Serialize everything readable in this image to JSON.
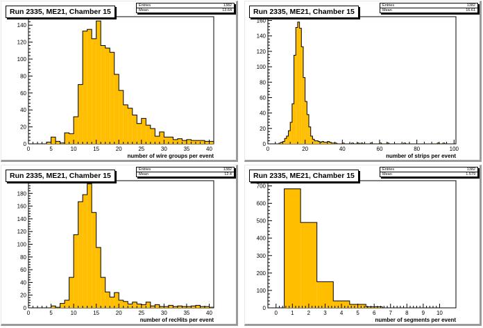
{
  "colors": {
    "fill": "#ffbe00",
    "line": "#000000",
    "shadow": "#9a9a9a"
  },
  "chart_data": [
    {
      "type": "bar",
      "title": "Run 2335, ME21, Chamber 15",
      "xlabel": "number of wire groups per event",
      "stats": {
        "entries_label": "Entries",
        "entries": "1382",
        "mean_label": "Mean",
        "mean": "13.64"
      },
      "xlim": [
        0,
        41
      ],
      "ylim": [
        0,
        150
      ],
      "xticks": [
        0,
        5,
        10,
        15,
        20,
        25,
        30,
        35,
        40
      ],
      "yticks": [
        0,
        20,
        40,
        60,
        80,
        100,
        120,
        140
      ],
      "bin_start": 0,
      "bin_width": 1,
      "values": [
        0,
        0,
        0,
        0,
        2,
        8,
        3,
        1,
        13,
        12,
        32,
        70,
        133,
        135,
        124,
        145,
        116,
        113,
        108,
        82,
        63,
        46,
        42,
        34,
        24,
        30,
        22,
        18,
        9,
        14,
        8,
        8,
        5,
        6,
        4,
        5,
        4,
        4,
        4,
        3,
        3
      ]
    },
    {
      "type": "bar",
      "title": "Run 2335, ME21, Chamber 15",
      "xlabel": "number of strips per event",
      "stats": {
        "entries_label": "Entries",
        "entries": "1382",
        "mean_label": "Mean",
        "mean": "16.61"
      },
      "xlim": [
        0,
        101
      ],
      "ylim": [
        0,
        165
      ],
      "xticks": [
        0,
        20,
        40,
        60,
        80,
        100
      ],
      "yticks": [
        0,
        20,
        40,
        60,
        80,
        100,
        120,
        140,
        160
      ],
      "bin_start": 0,
      "bin_width": 1,
      "values": [
        0,
        0,
        0,
        0,
        0,
        0,
        1,
        2,
        3,
        7,
        10,
        17,
        28,
        52,
        115,
        151,
        158,
        150,
        126,
        86,
        55,
        38,
        22,
        10,
        6,
        4,
        4,
        3,
        2,
        3,
        2,
        2,
        3,
        2,
        1,
        1,
        1,
        0,
        0,
        0,
        1,
        0,
        0,
        0,
        0,
        1,
        0,
        0,
        1,
        0,
        1,
        0,
        0,
        0,
        0,
        1,
        0,
        0,
        0,
        0,
        1,
        0,
        0,
        0,
        1,
        0,
        0,
        0,
        0,
        0,
        0,
        0,
        0,
        1,
        0,
        0,
        0,
        0,
        0,
        0,
        0,
        0,
        0,
        0,
        0,
        0,
        0,
        0,
        0,
        0,
        0,
        1,
        0,
        0,
        1,
        0,
        0,
        0,
        0,
        0,
        0
      ]
    },
    {
      "type": "bar",
      "title": "Run 2335, ME21, Chamber 15",
      "xlabel": "number of recHits per event",
      "stats": {
        "entries_label": "Entries",
        "entries": "1382",
        "mean_label": "Mean",
        "mean": "12.4"
      },
      "xlim": [
        0,
        41
      ],
      "ylim": [
        0,
        200
      ],
      "xticks": [
        0,
        5,
        10,
        15,
        20,
        25,
        30,
        35,
        40
      ],
      "yticks": [
        0,
        20,
        40,
        60,
        80,
        100,
        120,
        140,
        160,
        180,
        200
      ],
      "bin_start": 0,
      "bin_width": 1,
      "values": [
        0,
        0,
        0,
        0,
        0,
        3,
        1,
        7,
        12,
        48,
        115,
        167,
        178,
        195,
        150,
        95,
        48,
        25,
        17,
        24,
        12,
        10,
        6,
        9,
        6,
        5,
        9,
        3,
        5,
        2,
        2,
        4,
        2,
        3,
        2,
        2,
        3,
        4,
        2,
        2,
        1
      ]
    },
    {
      "type": "bar",
      "title": "Run 2335, ME21, Chamber 15",
      "xlabel": "number of segments per event",
      "stats": {
        "entries_label": "Entries",
        "entries": "1382",
        "mean_label": "Mean",
        "mean": "1.579"
      },
      "xlim": [
        -0.5,
        11
      ],
      "ylim": [
        0,
        730
      ],
      "xticks": [
        0,
        1,
        2,
        3,
        4,
        5,
        6,
        7,
        8,
        9,
        10
      ],
      "yticks": [
        0,
        100,
        200,
        300,
        400,
        500,
        600,
        700
      ],
      "bin_start": 0.5,
      "bin_width": 1,
      "values": [
        683,
        490,
        150,
        40,
        20,
        6,
        0,
        0,
        0,
        0
      ]
    }
  ]
}
